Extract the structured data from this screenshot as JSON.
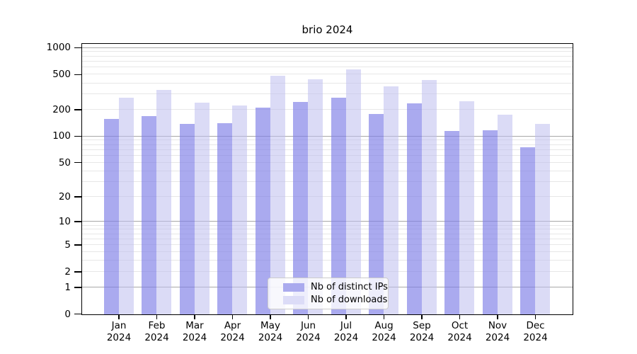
{
  "chart_data": {
    "type": "bar",
    "title": "brio 2024",
    "categories": [
      "Jan",
      "Feb",
      "Mar",
      "Apr",
      "May",
      "Jun",
      "Jul",
      "Aug",
      "Sep",
      "Oct",
      "Nov",
      "Dec"
    ],
    "year_label": "2024",
    "series": [
      {
        "name": "Nb of distinct IPs",
        "values": [
          157,
          171,
          138,
          142,
          213,
          247,
          276,
          179,
          237,
          116,
          118,
          75
        ],
        "bar_color": "rgba(125,125,230,0.65)",
        "swatch_color": "#aaaaee"
      },
      {
        "name": "Nb of downloads",
        "values": [
          276,
          337,
          240,
          224,
          484,
          446,
          572,
          369,
          436,
          250,
          177,
          139
        ],
        "bar_color": "rgba(190,190,238,0.55)",
        "swatch_color": "#dcdcf7"
      }
    ],
    "yscale": "log1p",
    "ylim": [
      0,
      1100
    ],
    "yticks": [
      0,
      1,
      2,
      5,
      10,
      20,
      50,
      100,
      200,
      500,
      1000
    ],
    "ytick_labels": [
      "0",
      "1",
      "2",
      "5",
      "10",
      "20",
      "50",
      "100",
      "200",
      "500",
      "1000"
    ],
    "grid": {
      "minor_color": "#e7e7e7",
      "major_color": "#a8a8a8",
      "major_at": [
        1,
        10,
        100,
        1000
      ]
    },
    "legend_position": "lower center"
  }
}
